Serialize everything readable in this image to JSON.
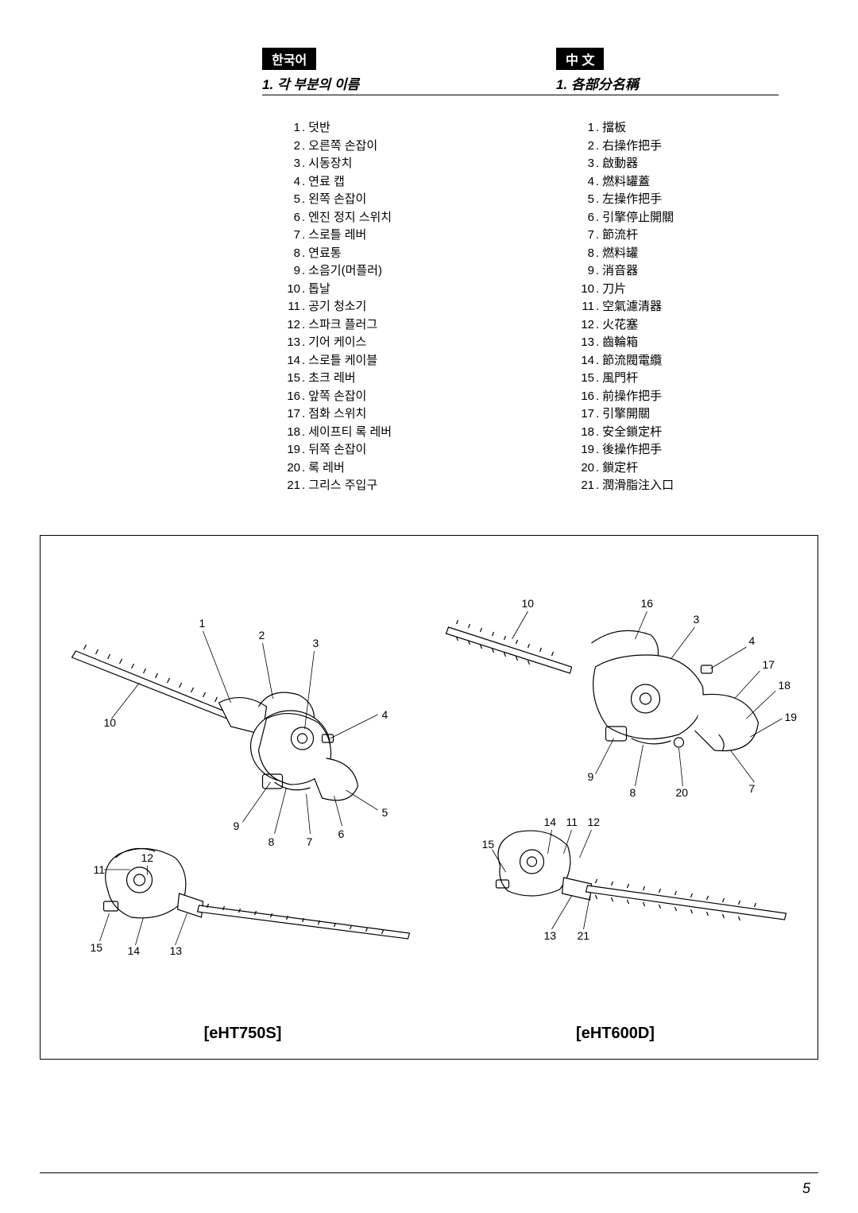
{
  "korean": {
    "badge": "한국어",
    "title": "1. 각 부분의 이름",
    "parts": [
      "덧반",
      "오른쪽 손잡이",
      "시동장치",
      "연료 캡",
      "왼쪽 손잡이",
      "엔진 정지 스위치",
      "스로틀 레버",
      "연료통",
      "소음기(머플러)",
      "톱날",
      "공기 청소기",
      "스파크 플러그",
      "기어 케이스",
      "스로틀 케이블",
      "초크 레버",
      "앞쪽 손잡이",
      "점화 스위치",
      "세이프티 록 레버",
      "뒤쪽 손잡이",
      "록 레버",
      "그리스 주입구"
    ]
  },
  "chinese": {
    "badge": "中 文",
    "title": "1. 各部分名稱",
    "parts": [
      "擋板",
      "右操作把手",
      "啟動器",
      "燃料罐蓋",
      "左操作把手",
      "引擎停止開關",
      "節流杆",
      "燃料罐",
      "消音器",
      "刀片",
      "空氣濾清器",
      "火花塞",
      "齒輪箱",
      "節流閥電纜",
      "風門杆",
      "前操作把手",
      "引擎開關",
      "安全鎖定杆",
      "後操作把手",
      "鎖定杆",
      "潤滑脂注入口"
    ]
  },
  "diagram": {
    "model_left": "[eHT750S]",
    "model_right": "[eHT600D]",
    "left_callouts": [
      "1",
      "2",
      "3",
      "4",
      "5",
      "6",
      "7",
      "8",
      "9",
      "10",
      "11",
      "12",
      "13",
      "14",
      "15"
    ],
    "right_callouts": [
      "3",
      "4",
      "7",
      "8",
      "9",
      "10",
      "11",
      "12",
      "13",
      "14",
      "15",
      "16",
      "17",
      "18",
      "19",
      "20",
      "21"
    ]
  },
  "page_number": "5",
  "colors": {
    "bg": "#ffffff",
    "text": "#000000",
    "badge_bg": "#000000",
    "badge_fg": "#ffffff",
    "line": "#000000"
  }
}
